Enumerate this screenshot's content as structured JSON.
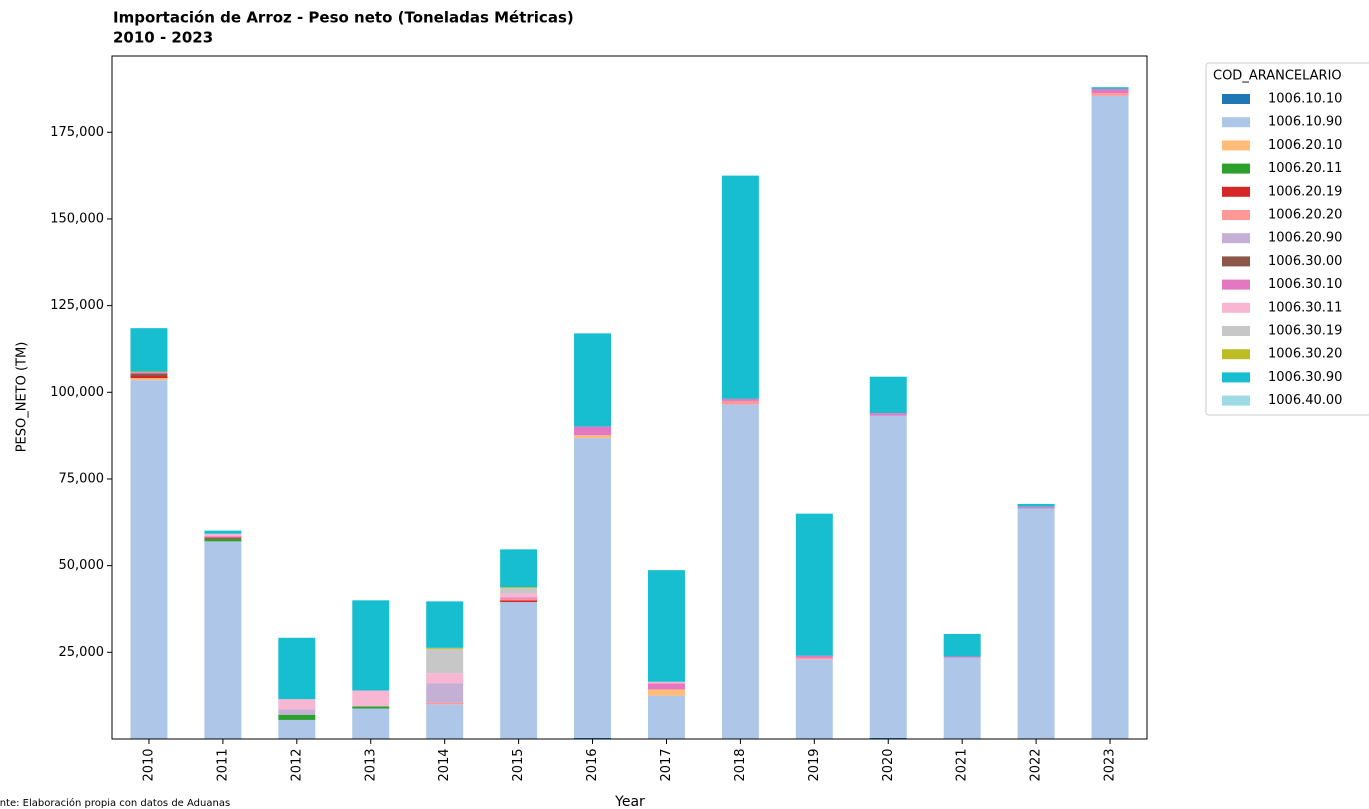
{
  "chart_data": {
    "type": "stacked_bar",
    "title": "Importación de Arroz - Peso neto (Toneladas Métricas)",
    "subtitle": "2010 - 2023",
    "y_label": "PESO_NETO (TM)",
    "x_label": "Year",
    "note": "Fuente: Elaboración propia con datos de Aduanas",
    "legend_title": "COD_ARANCELARIO",
    "legend": "upper right outside",
    "categories": [
      "2010",
      "2011",
      "2012",
      "2013",
      "2014",
      "2015",
      "2016",
      "2017",
      "2018",
      "2019",
      "2020",
      "2021",
      "2022",
      "2023"
    ],
    "ylim": [
      0,
      197000
    ],
    "yticks": [
      {
        "value": 25000,
        "label": "25,000"
      },
      {
        "value": 50000,
        "label": "50,000"
      },
      {
        "value": 75000,
        "label": "75,000"
      },
      {
        "value": 100000,
        "label": "100,000"
      },
      {
        "value": 125000,
        "label": "125,000"
      },
      {
        "value": 150000,
        "label": "150,000"
      },
      {
        "value": 175000,
        "label": "175,000"
      }
    ],
    "series": [
      {
        "name": "1006.10.10",
        "color": "#1f77b4",
        "values": [
          0,
          0,
          0,
          0,
          0,
          0,
          300,
          0,
          0,
          0,
          300,
          200,
          200,
          200
        ]
      },
      {
        "name": "1006.10.90",
        "color": "#aec7e8",
        "values": [
          103500,
          57000,
          5500,
          8800,
          10000,
          39500,
          86500,
          12500,
          96500,
          23000,
          93000,
          23300,
          66300,
          185300
        ]
      },
      {
        "name": "1006.20.10",
        "color": "#ffbb78",
        "values": [
          600,
          0,
          0,
          0,
          0,
          0,
          800,
          1800,
          0,
          0,
          0,
          0,
          0,
          0
        ]
      },
      {
        "name": "1006.20.11",
        "color": "#2ca02c",
        "values": [
          0,
          800,
          1500,
          600,
          0,
          0,
          0,
          0,
          0,
          0,
          0,
          0,
          0,
          0
        ]
      },
      {
        "name": "1006.20.19",
        "color": "#d62728",
        "values": [
          600,
          300,
          0,
          0,
          0,
          500,
          0,
          0,
          0,
          0,
          0,
          0,
          0,
          0
        ]
      },
      {
        "name": "1006.20.20",
        "color": "#ff9896",
        "values": [
          0,
          0,
          0,
          0,
          500,
          500,
          0,
          0,
          1000,
          500,
          0,
          0,
          0,
          800
        ]
      },
      {
        "name": "1006.20.90",
        "color": "#c5b0d5",
        "values": [
          0,
          0,
          1500,
          0,
          5500,
          0,
          0,
          0,
          0,
          0,
          0,
          0,
          0,
          0
        ]
      },
      {
        "name": "1006.30.00",
        "color": "#8c564b",
        "values": [
          700,
          0,
          0,
          0,
          0,
          0,
          0,
          0,
          0,
          0,
          0,
          0,
          0,
          0
        ]
      },
      {
        "name": "1006.30.10",
        "color": "#e377c2",
        "values": [
          400,
          400,
          0,
          0,
          0,
          300,
          2500,
          1700,
          600,
          500,
          700,
          300,
          500,
          1200
        ]
      },
      {
        "name": "1006.30.11",
        "color": "#f7b6d2",
        "values": [
          0,
          700,
          3000,
          4600,
          3000,
          1200,
          0,
          500,
          0,
          0,
          0,
          0,
          0,
          0
        ]
      },
      {
        "name": "1006.30.19",
        "color": "#c7c7c7",
        "values": [
          0,
          0,
          0,
          0,
          7000,
          1500,
          0,
          0,
          0,
          0,
          0,
          0,
          0,
          0
        ]
      },
      {
        "name": "1006.30.20",
        "color": "#bcbd22",
        "values": [
          200,
          0,
          0,
          0,
          300,
          300,
          0,
          0,
          0,
          0,
          0,
          0,
          0,
          0
        ]
      },
      {
        "name": "1006.30.90",
        "color": "#17becf",
        "values": [
          12500,
          900,
          17700,
          26000,
          13400,
          10900,
          26900,
          32200,
          64400,
          41000,
          10500,
          6500,
          800,
          500
        ]
      },
      {
        "name": "1006.40.00",
        "color": "#9edae5",
        "values": [
          0,
          0,
          0,
          0,
          0,
          0,
          0,
          0,
          0,
          0,
          0,
          0,
          0,
          0
        ]
      }
    ]
  }
}
